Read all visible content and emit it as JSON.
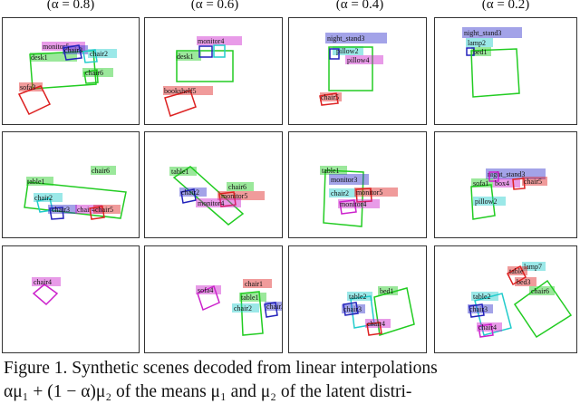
{
  "columns": [
    "(α = 0.8)",
    "(α = 0.6)",
    "(α = 0.4)",
    "(α = 0.2)"
  ],
  "colors": {
    "desk": "#22cc22",
    "monitor": "#cc22cc",
    "chair": "#22cccc",
    "sofa": "#dd2222",
    "bookshelf": "#dd2222",
    "night_stand": "#3333cc",
    "lamp": "#22cccc",
    "bed": "#22cc22",
    "pillow": "#cc22cc",
    "table": "#22cc22",
    "box": "#cc22cc"
  },
  "rows": [
    [
      {
        "labels": [
          "monitor5",
          "chair3",
          "chair2",
          "desk1",
          "chair6",
          "sofa3"
        ]
      },
      {
        "labels": [
          "monitor4",
          "desk1",
          "bookshelf5"
        ]
      },
      {
        "labels": [
          "night_stand3",
          "pillow2",
          "pillow4",
          "chair5"
        ]
      },
      {
        "labels": [
          "night_stand3",
          "lamp2",
          "bed1"
        ]
      }
    ],
    [
      {
        "labels": [
          "chair6",
          "table1",
          "chair2",
          "chair3",
          "chair4",
          "chair5"
        ]
      },
      {
        "labels": [
          "table1",
          "chair6",
          "chair2",
          "monitor5",
          "monitor4"
        ]
      },
      {
        "labels": [
          "table1",
          "monitor3",
          "chair2",
          "monitor5",
          "monitor4"
        ]
      },
      {
        "labels": [
          "night_stand3",
          "sofa1",
          "box4",
          "chair5",
          "pillow2"
        ]
      }
    ],
    [
      {
        "labels": [
          "chair4"
        ]
      },
      {
        "labels": [
          "chair2",
          "sofa4",
          "chair1",
          "table1",
          "chair3"
        ]
      },
      {
        "labels": [
          "bed1",
          "table2",
          "chair3",
          "chair4"
        ]
      },
      {
        "labels": [
          "lamp7",
          "table",
          "bed3",
          "table2",
          "chair6",
          "chair3",
          "chair4"
        ]
      }
    ]
  ],
  "caption": [
    "Figure 1. Synthetic scenes decoded from linear interpolations",
    "αμ₁ + (1 − α)μ₂ of the means μ₁ and μ₂ of the latent distri-"
  ]
}
